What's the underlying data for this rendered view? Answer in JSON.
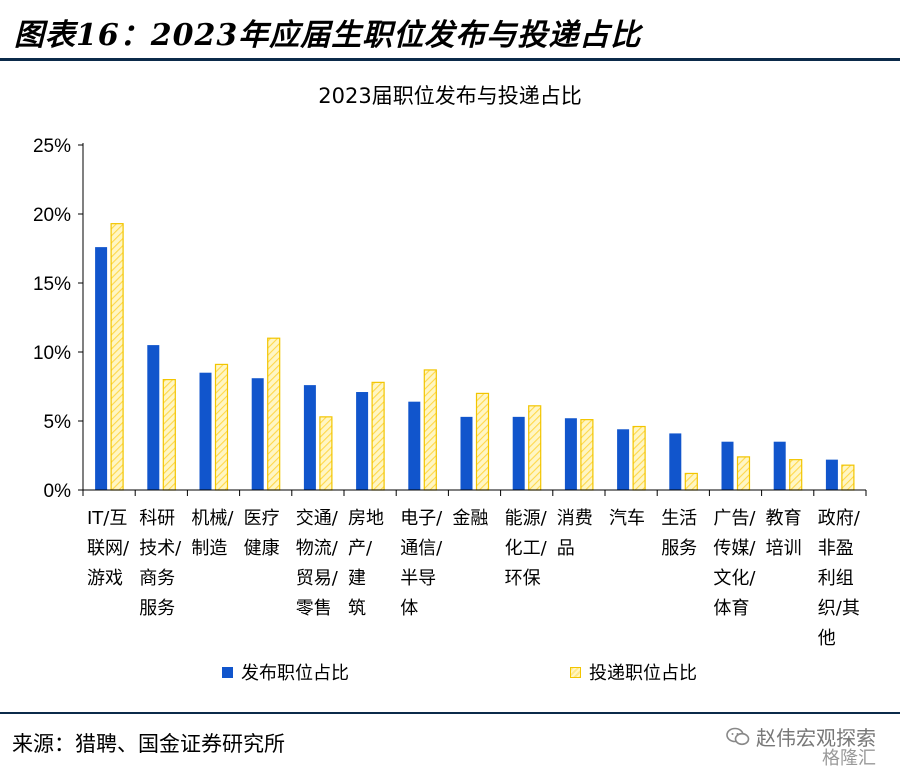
{
  "figure_title": "图表16：2023年应届生职位发布与投递占比",
  "source_text": "来源：猎聘、国金证券研究所",
  "watermark": {
    "line1": "赵伟宏观探索",
    "line2": "格隆汇",
    "icon": "wechat-icon"
  },
  "colors": {
    "published": "#1155cc",
    "applied_fill": "#fff3b0",
    "applied_border": "#f2c500"
  },
  "chart_data": {
    "type": "bar",
    "title": "2023届职位发布与投递占比",
    "xlabel": "",
    "ylabel": "",
    "ylim": [
      0,
      25
    ],
    "yticks": [
      "0%",
      "5%",
      "10%",
      "15%",
      "20%",
      "25%"
    ],
    "legend_position": "bottom",
    "categories": [
      [
        "IT/互",
        "联网/",
        "游戏"
      ],
      [
        "科研",
        "技术/",
        "商务",
        "服务"
      ],
      [
        "机械/",
        "制造"
      ],
      [
        "医疗",
        "健康"
      ],
      [
        "交通/",
        "物流/",
        "贸易/",
        "零售"
      ],
      [
        "房地",
        "产/",
        "建",
        "筑"
      ],
      [
        "电子/",
        "通信/",
        "半导",
        "体"
      ],
      [
        "金融"
      ],
      [
        "能源/",
        "化工/",
        "环保"
      ],
      [
        "消费",
        "品"
      ],
      [
        "汽车"
      ],
      [
        "生活",
        "服务"
      ],
      [
        "广告/",
        "传媒/",
        "文化/",
        "体育"
      ],
      [
        "教育",
        "培训"
      ],
      [
        "政府/",
        "非盈",
        "利组",
        "织/其",
        "他"
      ]
    ],
    "series": [
      {
        "name": "发布职位占比",
        "values": [
          17.6,
          10.5,
          8.5,
          8.1,
          7.6,
          7.1,
          6.4,
          5.3,
          5.3,
          5.2,
          4.4,
          4.1,
          3.5,
          3.5,
          2.2
        ]
      },
      {
        "name": "投递职位占比",
        "values": [
          19.3,
          8.0,
          9.1,
          11.0,
          5.3,
          7.8,
          8.7,
          7.0,
          6.1,
          5.1,
          4.6,
          1.2,
          2.4,
          2.2,
          1.8
        ]
      }
    ]
  }
}
